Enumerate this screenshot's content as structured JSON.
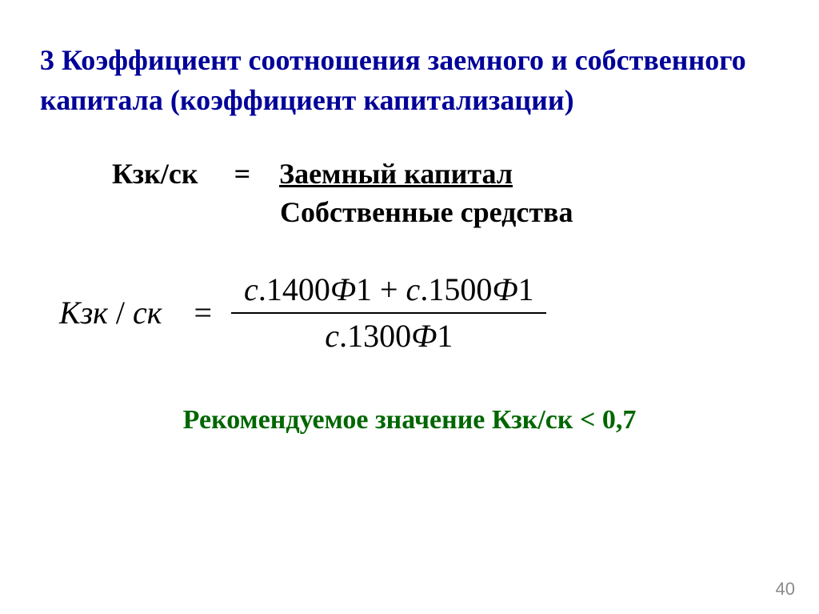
{
  "title": "3 Коэффициент соотношения заемного и собственного капитала (коэффициент капитализации)",
  "formula1": {
    "lhs": "Кзк/ск",
    "eq": "=",
    "numerator": "Заемный капитал",
    "denominator": "Собственные средства"
  },
  "formula2": {
    "lhs_K": "К",
    "lhs_sub1": "зк",
    "lhs_slash": " / ",
    "lhs_sub2": "ск",
    "eq": "=",
    "num_part1": "с",
    "num_part2": ".1400",
    "num_part3": "Ф",
    "num_part4": "1",
    "num_plus": " + ",
    "num_part5": "с",
    "num_part6": ".1500",
    "num_part7": "Ф",
    "num_part8": "1",
    "den_part1": "с",
    "den_part2": ".1300",
    "den_part3": "Ф",
    "den_part4": "1"
  },
  "recommend": "Рекомендуемое значение  Кзк/ск < 0,7",
  "slide_number": "40",
  "colors": {
    "title": "#000099",
    "body": "#000000",
    "recommend": "#006600",
    "background": "#ffffff",
    "slide_num": "#8a8a8a"
  },
  "fontsizes": {
    "title": 36,
    "formula1": 36,
    "formula2": 40,
    "recommend": 34,
    "slide_num": 22
  }
}
